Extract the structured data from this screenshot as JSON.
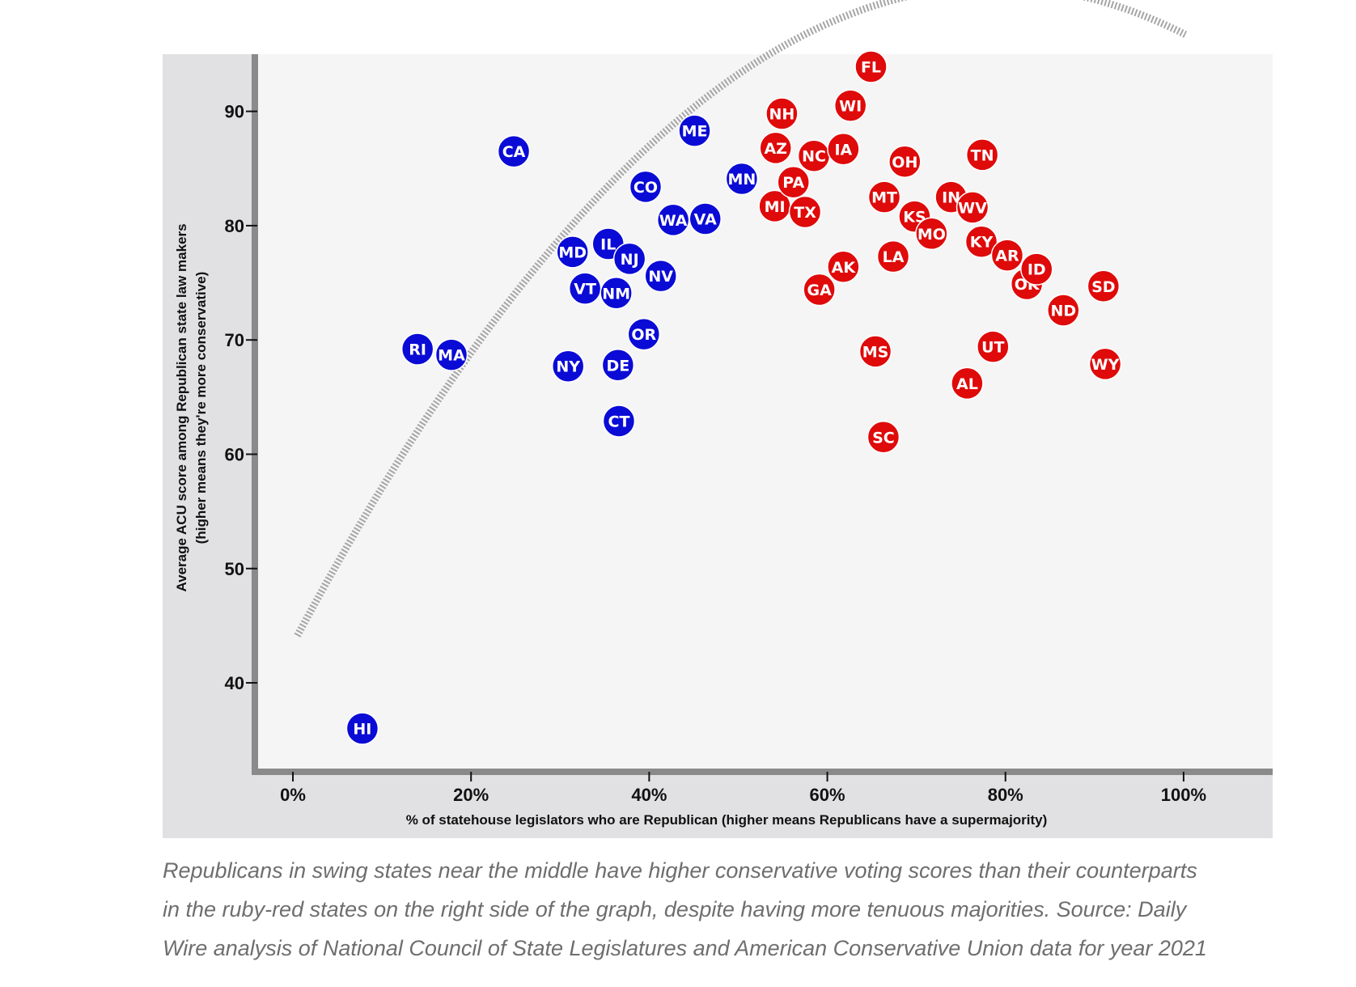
{
  "chart_data": {
    "type": "scatter",
    "title": "",
    "xlabel": "% of statehouse legislators who are Republican (higher means Republicans have a supermajority)",
    "ylabel_line1": "Average ACU score among Republican state law makers",
    "ylabel_line2": "(higher means they're more conservative)",
    "xlim": [
      -4,
      110
    ],
    "ylim": [
      32.5,
      95
    ],
    "x_ticks": [
      0,
      20,
      40,
      60,
      80,
      100
    ],
    "x_tick_labels": [
      "0%",
      "20%",
      "40%",
      "60%",
      "80%",
      "100%"
    ],
    "y_ticks": [
      40,
      50,
      60,
      70,
      80,
      90
    ],
    "y_tick_labels": [
      "40",
      "50",
      "60",
      "70",
      "80",
      "90"
    ],
    "grid": false,
    "legend": "none",
    "colors": {
      "blue": "#0b0bd6",
      "red": "#df0a0a",
      "curve": "#a5a5a5",
      "plot_bg": "#f5f5f5",
      "frame_bg": "#e1e1e3",
      "axis": "#8a8a8a"
    },
    "trend": {
      "type": "quadratic",
      "a": -0.00926,
      "b": 1.46,
      "c": 43.4,
      "x_range": [
        0.5,
        100.2
      ]
    },
    "series": [
      {
        "color": "blue",
        "points": [
          {
            "state": "HI",
            "x": 7.8,
            "y": 36
          },
          {
            "state": "RI",
            "x": 14,
            "y": 69.2
          },
          {
            "state": "MA",
            "x": 17.8,
            "y": 68.7
          },
          {
            "state": "CA",
            "x": 24.8,
            "y": 86.5
          },
          {
            "state": "NY",
            "x": 30.9,
            "y": 67.7
          },
          {
            "state": "MD",
            "x": 31.4,
            "y": 77.7
          },
          {
            "state": "VT",
            "x": 32.8,
            "y": 74.5
          },
          {
            "state": "IL",
            "x": 35.4,
            "y": 78.4
          },
          {
            "state": "NM",
            "x": 36.3,
            "y": 74.1
          },
          {
            "state": "DE",
            "x": 36.5,
            "y": 67.8
          },
          {
            "state": "CT",
            "x": 36.6,
            "y": 62.9
          },
          {
            "state": "NJ",
            "x": 37.8,
            "y": 77.1
          },
          {
            "state": "OR",
            "x": 39.4,
            "y": 70.5
          },
          {
            "state": "CO",
            "x": 39.6,
            "y": 83.4
          },
          {
            "state": "NV",
            "x": 41.3,
            "y": 75.6
          },
          {
            "state": "WA",
            "x": 42.7,
            "y": 80.5
          },
          {
            "state": "ME",
            "x": 45.1,
            "y": 88.3
          },
          {
            "state": "VA",
            "x": 46.3,
            "y": 80.6
          },
          {
            "state": "MN",
            "x": 50.4,
            "y": 84.1
          }
        ]
      },
      {
        "color": "red",
        "points": [
          {
            "state": "MI",
            "x": 54.1,
            "y": 81.7
          },
          {
            "state": "AZ",
            "x": 54.2,
            "y": 86.8
          },
          {
            "state": "NH",
            "x": 54.9,
            "y": 89.8
          },
          {
            "state": "PA",
            "x": 56.2,
            "y": 83.8
          },
          {
            "state": "TX",
            "x": 57.5,
            "y": 81.2
          },
          {
            "state": "NC",
            "x": 58.5,
            "y": 86.1
          },
          {
            "state": "GA",
            "x": 59.1,
            "y": 74.4
          },
          {
            "state": "IA",
            "x": 61.8,
            "y": 86.7
          },
          {
            "state": "AK",
            "x": 61.8,
            "y": 76.4
          },
          {
            "state": "WI",
            "x": 62.6,
            "y": 90.5
          },
          {
            "state": "FL",
            "x": 64.9,
            "y": 93.9
          },
          {
            "state": "MS",
            "x": 65.4,
            "y": 69
          },
          {
            "state": "SC",
            "x": 66.3,
            "y": 61.5
          },
          {
            "state": "MT",
            "x": 66.4,
            "y": 82.5
          },
          {
            "state": "LA",
            "x": 67.4,
            "y": 77.3
          },
          {
            "state": "OH",
            "x": 68.7,
            "y": 85.6
          },
          {
            "state": "KS",
            "x": 69.8,
            "y": 80.8
          },
          {
            "state": "MO",
            "x": 71.7,
            "y": 79.3
          },
          {
            "state": "IN",
            "x": 73.9,
            "y": 82.5
          },
          {
            "state": "WV",
            "x": 76.3,
            "y": 81.6
          },
          {
            "state": "AL",
            "x": 75.7,
            "y": 66.2
          },
          {
            "state": "KY",
            "x": 77.3,
            "y": 78.6
          },
          {
            "state": "TN",
            "x": 77.4,
            "y": 86.2
          },
          {
            "state": "UT",
            "x": 78.6,
            "y": 69.4
          },
          {
            "state": "AR",
            "x": 80.2,
            "y": 77.4
          },
          {
            "state": "OK",
            "x": 82.4,
            "y": 74.9
          },
          {
            "state": "ID",
            "x": 83.5,
            "y": 76.2
          },
          {
            "state": "ND",
            "x": 86.5,
            "y": 72.6
          },
          {
            "state": "SD",
            "x": 91,
            "y": 74.7
          },
          {
            "state": "WY",
            "x": 91.2,
            "y": 67.9
          }
        ]
      }
    ]
  },
  "caption": "Republicans in swing states near the middle have higher conservative voting scores than their counterparts in the ruby-red states on the right side of the graph, despite having more tenuous majorities. Source: Daily Wire analysis of National Council of State Legislatures and American Conservative Union data for year 2021"
}
